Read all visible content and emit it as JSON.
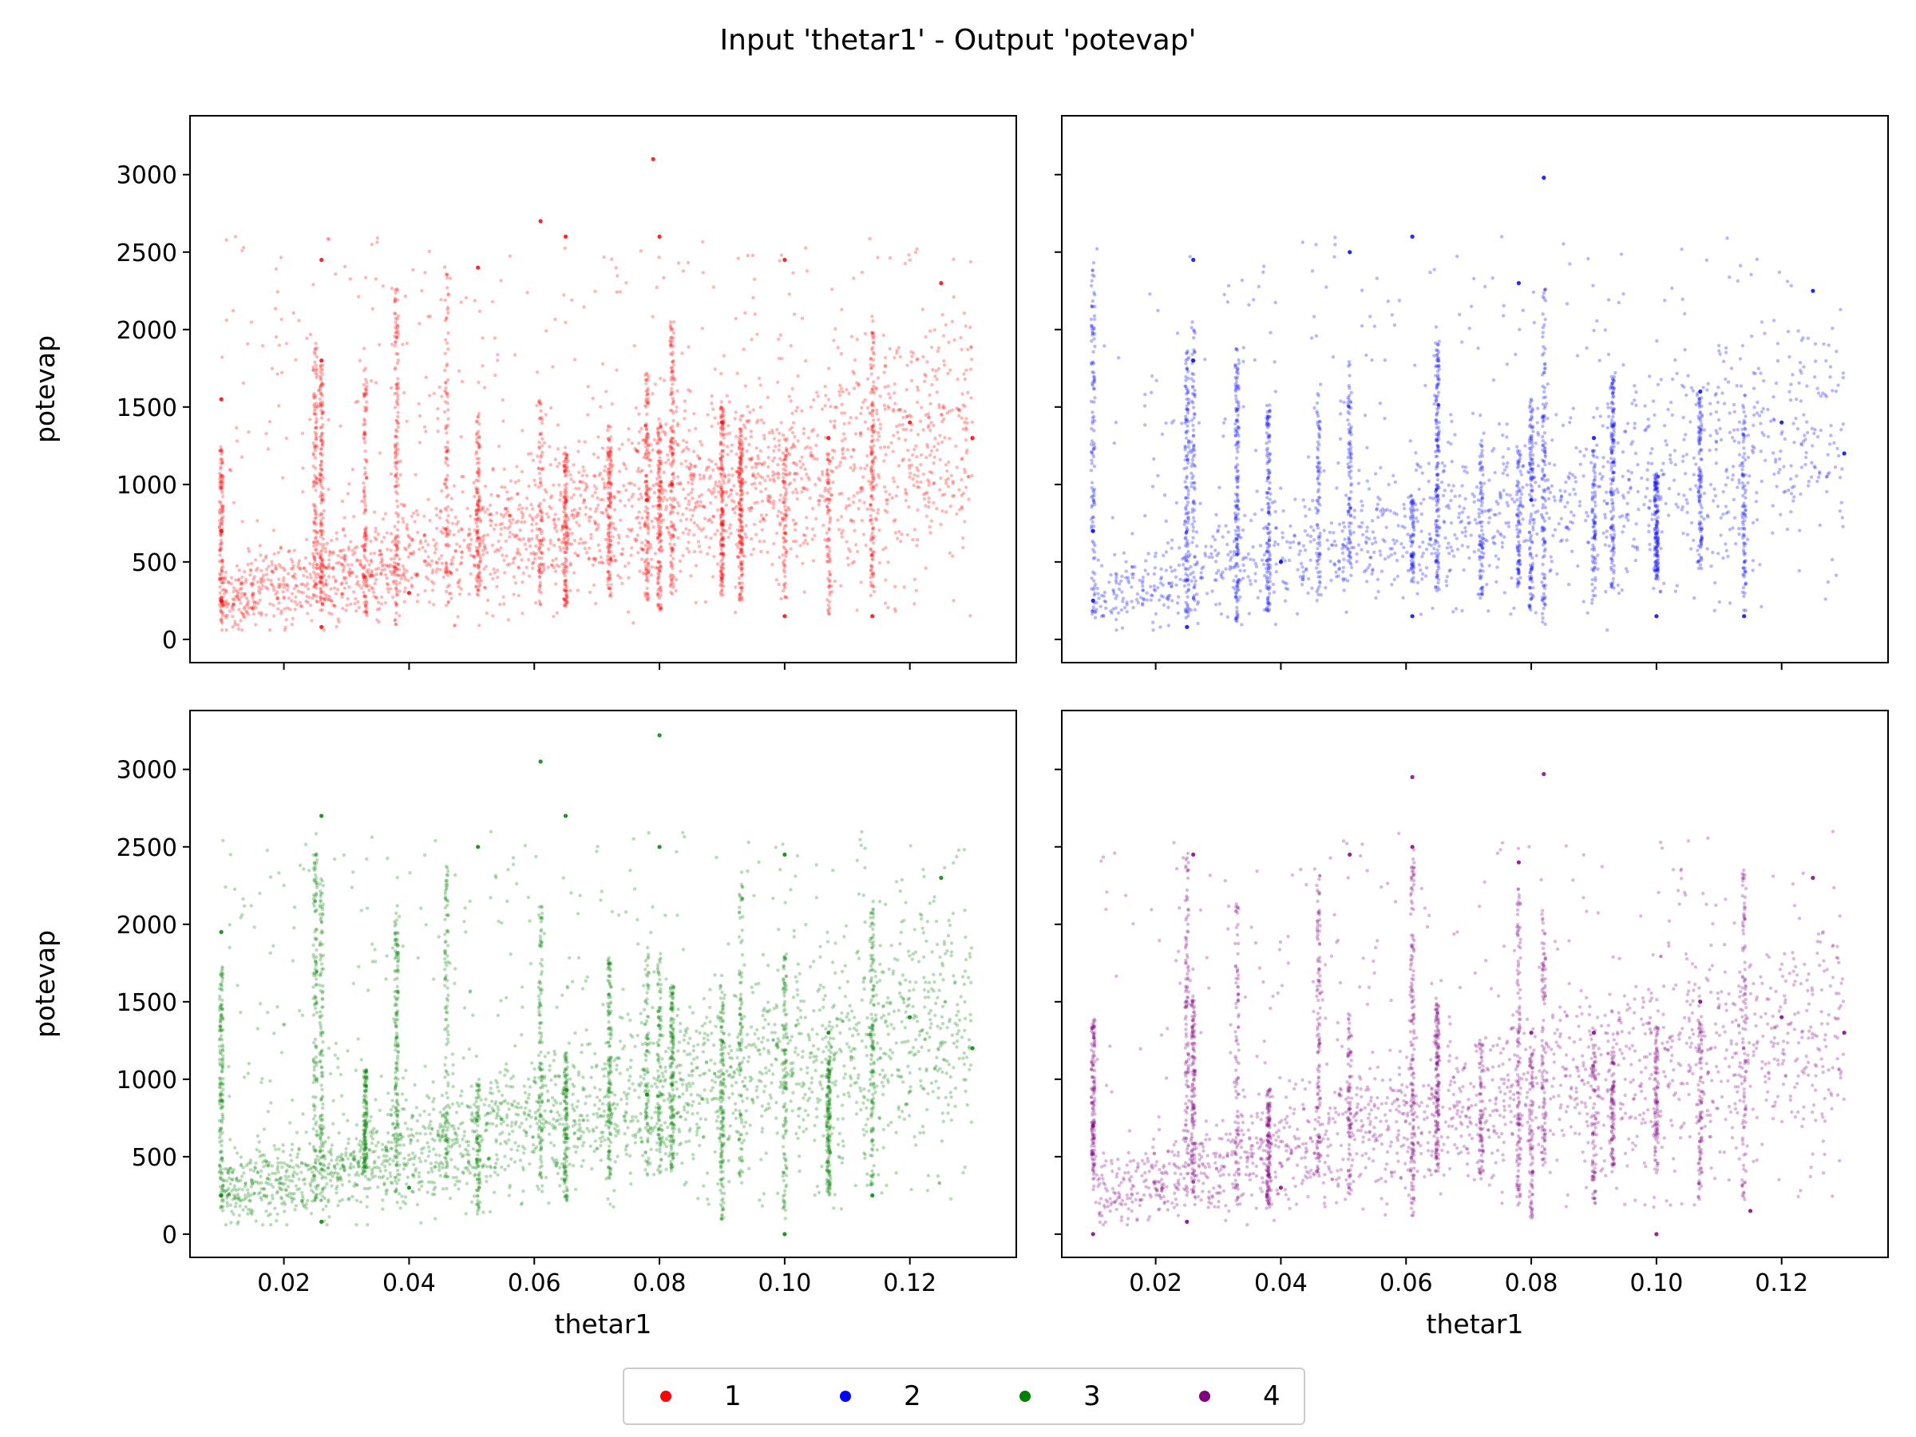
{
  "figure_title": "Input 'thetar1' - Output 'potevap'",
  "chart_data": [
    {
      "type": "scatter",
      "series_name": "1",
      "color": "#ff0000",
      "xlabel": "",
      "ylabel": "potevap",
      "xlim": [
        0.005,
        0.137
      ],
      "ylim": [
        -150,
        3380
      ],
      "xticks": [
        "0.02",
        "0.04",
        "0.06",
        "0.08",
        "0.10",
        "0.12"
      ],
      "yticks": [
        "0",
        "500",
        "1000",
        "1500",
        "2000",
        "2500",
        "3000"
      ],
      "show_xticklabels": false,
      "show_yticklabels": true,
      "sample_points": [
        [
          0.01,
          250
        ],
        [
          0.01,
          700
        ],
        [
          0.01,
          1550
        ],
        [
          0.026,
          80
        ],
        [
          0.026,
          1800
        ],
        [
          0.026,
          2450
        ],
        [
          0.04,
          300
        ],
        [
          0.051,
          2400
        ],
        [
          0.061,
          2700
        ],
        [
          0.065,
          2600
        ],
        [
          0.078,
          900
        ],
        [
          0.079,
          3100
        ],
        [
          0.08,
          2600
        ],
        [
          0.082,
          1000
        ],
        [
          0.09,
          1400
        ],
        [
          0.1,
          150
        ],
        [
          0.1,
          2450
        ],
        [
          0.107,
          1300
        ],
        [
          0.114,
          150
        ],
        [
          0.12,
          1400
        ],
        [
          0.125,
          2300
        ],
        [
          0.13,
          1300
        ]
      ]
    },
    {
      "type": "scatter",
      "series_name": "2",
      "color": "#0000ff",
      "xlabel": "",
      "ylabel": "",
      "xlim": [
        0.005,
        0.137
      ],
      "ylim": [
        -150,
        3380
      ],
      "xticks": [
        "0.02",
        "0.04",
        "0.06",
        "0.08",
        "0.10",
        "0.12"
      ],
      "yticks": [
        "0",
        "500",
        "1000",
        "1500",
        "2000",
        "2500",
        "3000"
      ],
      "show_xticklabels": false,
      "show_yticklabels": false,
      "sample_points": [
        [
          0.01,
          250
        ],
        [
          0.01,
          700
        ],
        [
          0.025,
          80
        ],
        [
          0.026,
          2450
        ],
        [
          0.026,
          1800
        ],
        [
          0.04,
          500
        ],
        [
          0.051,
          2500
        ],
        [
          0.061,
          2600
        ],
        [
          0.061,
          150
        ],
        [
          0.078,
          2300
        ],
        [
          0.08,
          900
        ],
        [
          0.082,
          2980
        ],
        [
          0.09,
          1300
        ],
        [
          0.1,
          150
        ],
        [
          0.107,
          1600
        ],
        [
          0.114,
          150
        ],
        [
          0.12,
          1400
        ],
        [
          0.125,
          2250
        ],
        [
          0.13,
          1200
        ]
      ]
    },
    {
      "type": "scatter",
      "series_name": "3",
      "color": "#008000",
      "xlabel": "thetar1",
      "ylabel": "potevap",
      "xlim": [
        0.005,
        0.137
      ],
      "ylim": [
        -150,
        3380
      ],
      "xticks": [
        "0.02",
        "0.04",
        "0.06",
        "0.08",
        "0.10",
        "0.12"
      ],
      "yticks": [
        "0",
        "500",
        "1000",
        "1500",
        "2000",
        "2500",
        "3000"
      ],
      "show_xticklabels": true,
      "show_yticklabels": true,
      "sample_points": [
        [
          0.01,
          250
        ],
        [
          0.01,
          1950
        ],
        [
          0.026,
          80
        ],
        [
          0.026,
          2700
        ],
        [
          0.04,
          300
        ],
        [
          0.051,
          2500
        ],
        [
          0.061,
          3050
        ],
        [
          0.065,
          2700
        ],
        [
          0.078,
          900
        ],
        [
          0.08,
          3220
        ],
        [
          0.08,
          2500
        ],
        [
          0.1,
          0
        ],
        [
          0.1,
          2450
        ],
        [
          0.107,
          1300
        ],
        [
          0.114,
          250
        ],
        [
          0.12,
          1400
        ],
        [
          0.125,
          2300
        ],
        [
          0.13,
          1200
        ]
      ]
    },
    {
      "type": "scatter",
      "series_name": "4",
      "color": "#800080",
      "xlabel": "thetar1",
      "ylabel": "",
      "xlim": [
        0.005,
        0.137
      ],
      "ylim": [
        -150,
        3380
      ],
      "xticks": [
        "0.02",
        "0.04",
        "0.06",
        "0.08",
        "0.10",
        "0.12"
      ],
      "yticks": [
        "0",
        "500",
        "1000",
        "1500",
        "2000",
        "2500",
        "3000"
      ],
      "show_xticklabels": true,
      "show_yticklabels": false,
      "sample_points": [
        [
          0.01,
          0
        ],
        [
          0.01,
          700
        ],
        [
          0.025,
          80
        ],
        [
          0.026,
          2450
        ],
        [
          0.04,
          300
        ],
        [
          0.051,
          2450
        ],
        [
          0.061,
          2500
        ],
        [
          0.061,
          2950
        ],
        [
          0.078,
          2400
        ],
        [
          0.08,
          1300
        ],
        [
          0.082,
          2970
        ],
        [
          0.09,
          1300
        ],
        [
          0.1,
          0
        ],
        [
          0.107,
          1500
        ],
        [
          0.115,
          150
        ],
        [
          0.12,
          1400
        ],
        [
          0.125,
          2300
        ],
        [
          0.13,
          1300
        ]
      ]
    }
  ],
  "legend": {
    "entries": [
      {
        "label": "1",
        "color": "#ff0000"
      },
      {
        "label": "2",
        "color": "#0000ff"
      },
      {
        "label": "3",
        "color": "#008000"
      },
      {
        "label": "4",
        "color": "#800080"
      }
    ]
  }
}
